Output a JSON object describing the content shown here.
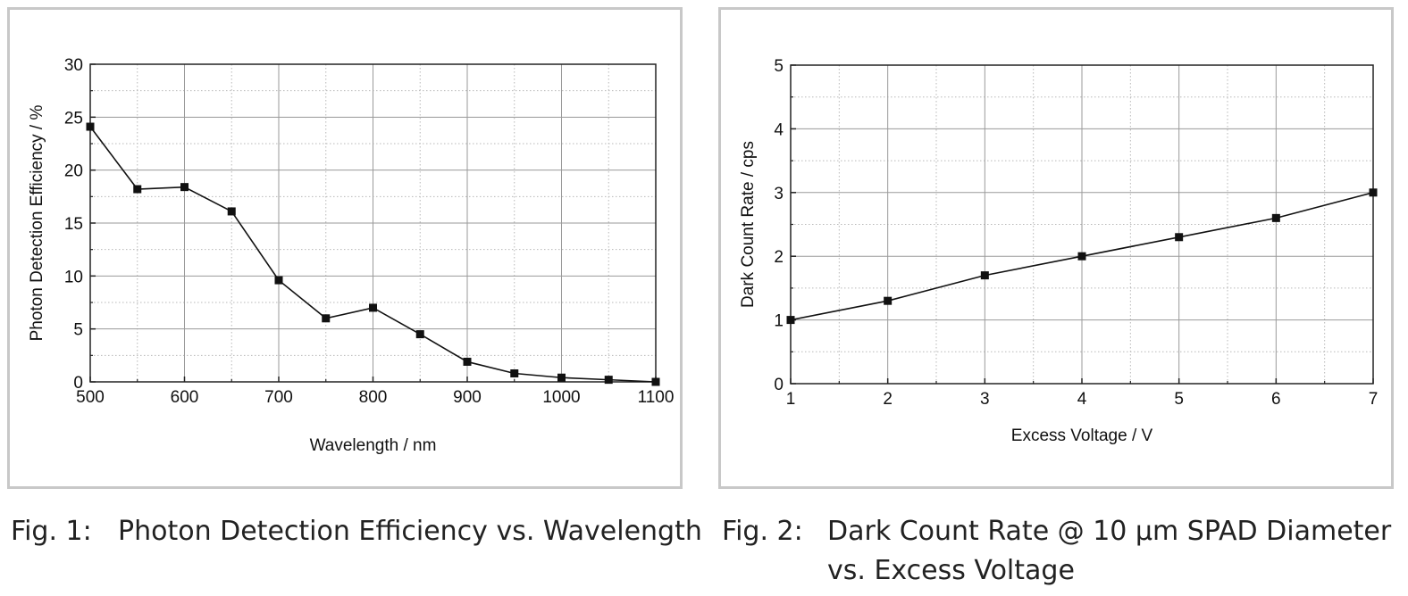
{
  "figures": [
    {
      "caption_number": "Fig. 1:",
      "caption_text": "Photon Detection Efficiency vs. Wavelength",
      "caption_cont": ""
    },
    {
      "caption_number": "Fig. 2:",
      "caption_text": "Dark Count Rate @ 10 µm SPAD Diameter",
      "caption_cont": "vs. Excess Voltage"
    }
  ],
  "chart_data": [
    {
      "type": "line",
      "title": "",
      "xlabel": "Wavelength / nm",
      "ylabel": "Photon Detection Efficiency / %",
      "xlim": [
        500,
        1100
      ],
      "ylim": [
        0,
        30
      ],
      "xticks": [
        500,
        600,
        700,
        800,
        900,
        1000,
        1100
      ],
      "yticks": [
        0,
        5,
        10,
        15,
        20,
        25,
        30
      ],
      "x_minor_step": 50,
      "y_minor_step": 2.5,
      "grid": true,
      "marker": "square",
      "series": [
        {
          "x": [
            500,
            550,
            600,
            650,
            700,
            750,
            800,
            850,
            900,
            950,
            1000,
            1050,
            1100
          ],
          "y": [
            24.1,
            18.2,
            18.4,
            16.1,
            9.6,
            6.0,
            7.0,
            4.5,
            1.9,
            0.8,
            0.4,
            0.2,
            0.0
          ]
        }
      ]
    },
    {
      "type": "line",
      "title": "",
      "xlabel": "Excess Voltage / V",
      "ylabel": "Dark Count Rate / cps",
      "xlim": [
        1,
        7
      ],
      "ylim": [
        0,
        5
      ],
      "xticks": [
        1,
        2,
        3,
        4,
        5,
        6,
        7
      ],
      "yticks": [
        0,
        1,
        2,
        3,
        4,
        5
      ],
      "x_minor_step": 0.5,
      "y_minor_step": 0.5,
      "grid": true,
      "marker": "square",
      "series": [
        {
          "x": [
            1,
            2,
            3,
            4,
            5,
            6,
            7
          ],
          "y": [
            1.0,
            1.3,
            1.7,
            2.0,
            2.3,
            2.6,
            3.0
          ]
        }
      ]
    }
  ]
}
